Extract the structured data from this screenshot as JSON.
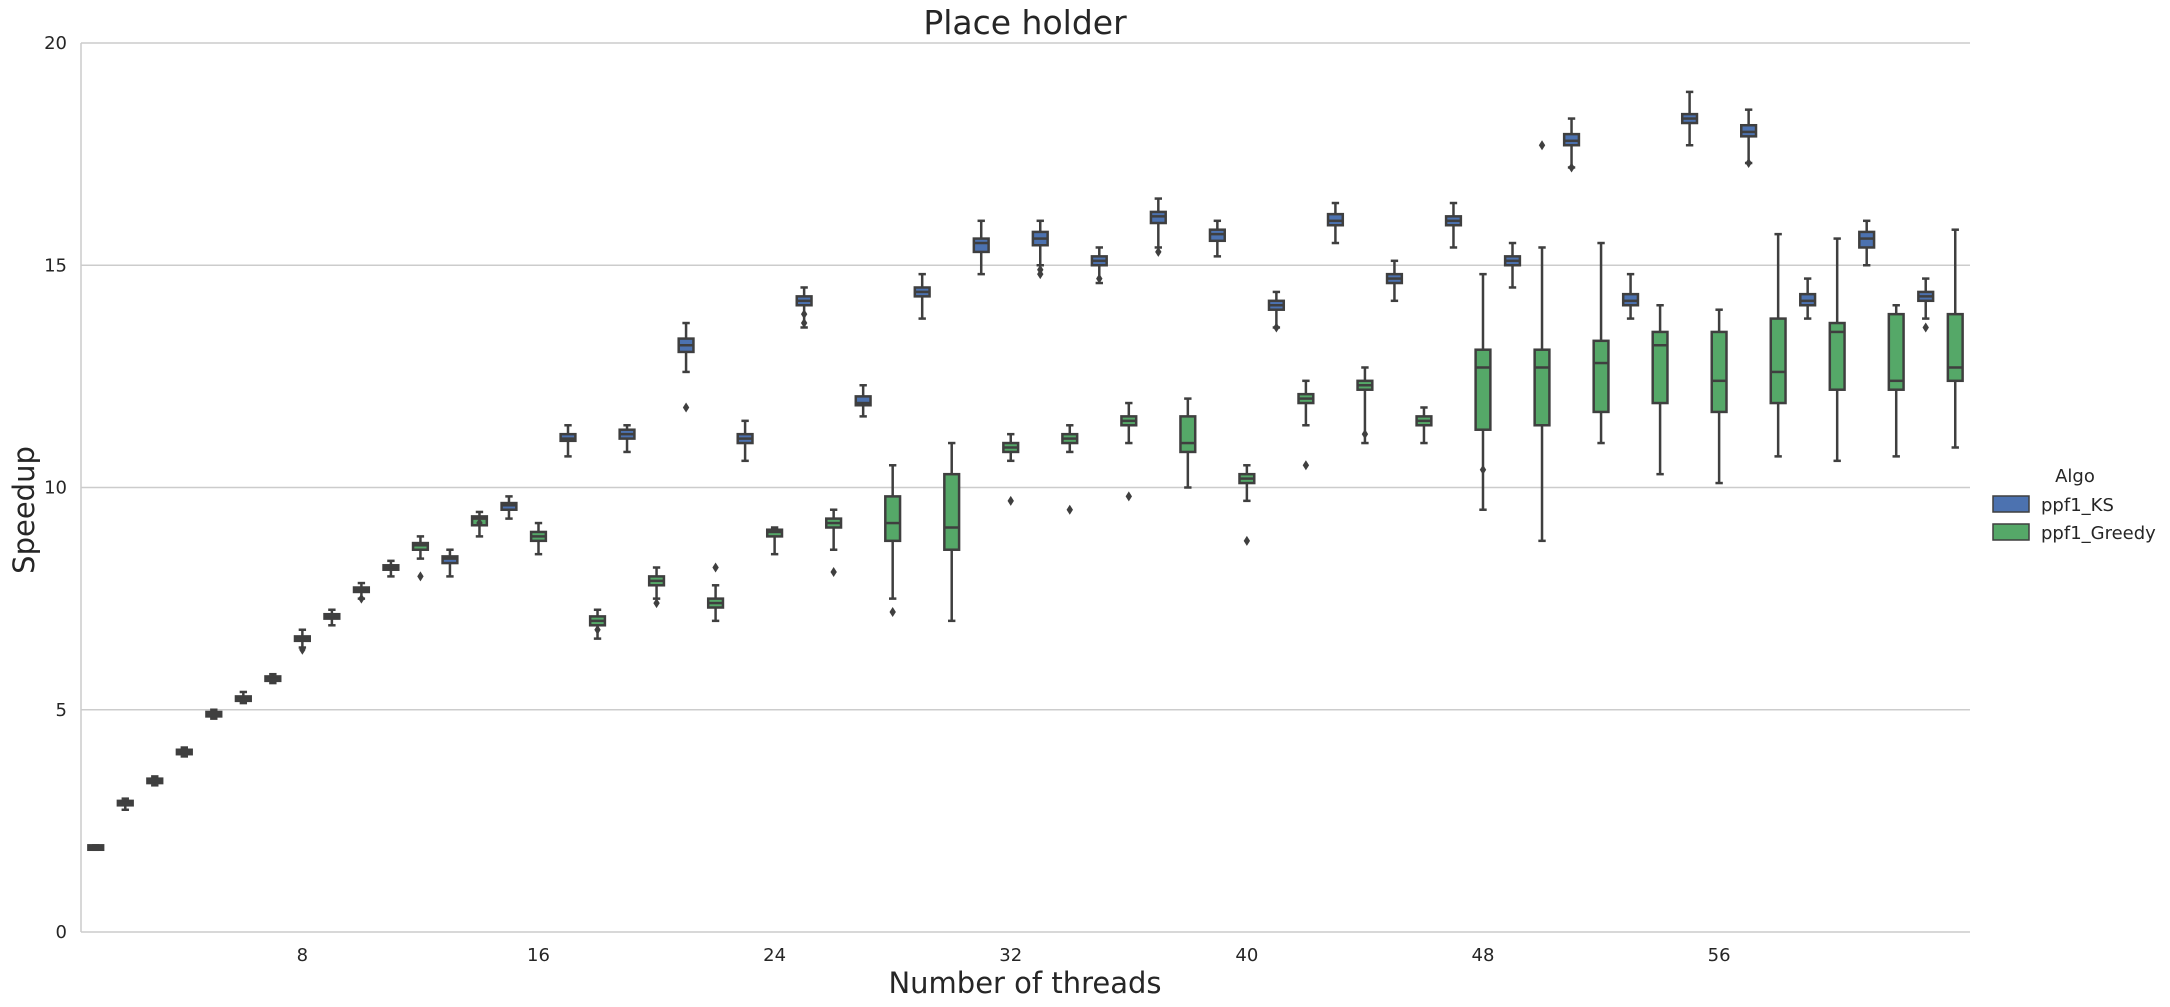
{
  "chart_data": {
    "type": "boxplot",
    "title": "Place holder",
    "xlabel": "Number of threads",
    "ylabel": "Speedup",
    "xlim": [
      0.5,
      64.5
    ],
    "ylim": [
      0,
      20
    ],
    "x_ticks": [
      8,
      16,
      24,
      32,
      40,
      48,
      56
    ],
    "y_ticks": [
      0,
      5,
      10,
      15,
      20
    ],
    "grid": "horizontal",
    "legend_position": "right",
    "legend": {
      "title": "Algo",
      "entries": [
        {
          "name": "ppf1_KS",
          "color": "#4c72b0"
        },
        {
          "name": "ppf1_Greedy",
          "color": "#55a868"
        }
      ]
    },
    "series": [
      {
        "name": "ppf1_KS",
        "color": "#4c72b0",
        "x": [
          1,
          3,
          5,
          7,
          9,
          11,
          13,
          15,
          17,
          19,
          21,
          23,
          25,
          27,
          29,
          31,
          33,
          35,
          37,
          39,
          41,
          43,
          45,
          47,
          49,
          51,
          53,
          55,
          57,
          59,
          61,
          63
        ],
        "median": [
          1.9,
          3.4,
          4.9,
          5.7,
          7.1,
          8.2,
          8.4,
          9.6,
          11.1,
          11.2,
          13.2,
          11.1,
          14.2,
          11.9,
          14.4,
          15.5,
          15.6,
          15.1,
          16.1,
          15.7,
          14.1,
          16.0,
          14.7,
          16.0,
          15.1,
          17.8,
          14.2,
          18.3,
          18.0,
          14.2,
          15.6,
          14.3
        ],
        "q1": [
          1.85,
          3.35,
          4.85,
          5.65,
          7.05,
          8.15,
          8.3,
          9.5,
          11.05,
          11.1,
          13.05,
          11.0,
          14.1,
          11.85,
          14.3,
          15.3,
          15.45,
          15.0,
          15.95,
          15.55,
          14.0,
          15.9,
          14.6,
          15.9,
          15.0,
          17.7,
          14.1,
          18.2,
          17.9,
          14.1,
          15.4,
          14.2
        ],
        "q3": [
          1.95,
          3.45,
          4.95,
          5.75,
          7.15,
          8.25,
          8.45,
          9.65,
          11.2,
          11.3,
          13.35,
          11.2,
          14.3,
          12.05,
          14.5,
          15.6,
          15.75,
          15.2,
          16.2,
          15.8,
          14.2,
          16.15,
          14.8,
          16.1,
          15.2,
          17.95,
          14.35,
          18.4,
          18.15,
          14.35,
          15.75,
          14.4
        ],
        "whislo": [
          1.85,
          3.3,
          4.8,
          5.6,
          6.9,
          8.0,
          8.0,
          9.3,
          10.7,
          10.8,
          12.6,
          10.6,
          13.6,
          11.6,
          13.8,
          14.8,
          15.0,
          14.6,
          15.4,
          15.2,
          13.6,
          15.5,
          14.2,
          15.4,
          14.5,
          17.2,
          13.8,
          17.7,
          17.3,
          13.8,
          15.0,
          13.8
        ],
        "whishi": [
          1.95,
          3.5,
          5.0,
          5.8,
          7.25,
          8.35,
          8.6,
          9.8,
          11.4,
          11.4,
          13.7,
          11.5,
          14.5,
          12.3,
          14.8,
          16.0,
          16.0,
          15.4,
          16.5,
          16.0,
          14.4,
          16.4,
          15.1,
          16.4,
          15.5,
          18.3,
          14.8,
          18.9,
          18.5,
          14.7,
          16.0,
          14.7
        ],
        "fliers": [
          [],
          [],
          [],
          [],
          [],
          [],
          [],
          [],
          [],
          [],
          [
            11.8
          ],
          [],
          [
            13.7,
            13.9
          ],
          [],
          [],
          [],
          [
            14.8,
            14.9
          ],
          [
            14.7
          ],
          [
            15.3
          ],
          [],
          [
            13.6
          ],
          [],
          [],
          [],
          [],
          [
            17.2
          ],
          [],
          [],
          [
            17.3
          ],
          [],
          [],
          [
            13.6
          ]
        ]
      },
      {
        "name": "ppf1_Greedy",
        "color": "#55a868",
        "x": [
          2,
          4,
          6,
          8,
          10,
          12,
          14,
          16,
          18,
          20,
          22,
          24,
          26,
          28,
          30,
          32,
          34,
          36,
          38,
          40,
          42,
          44,
          46,
          48,
          50,
          52,
          54,
          56,
          58,
          60,
          62,
          64
        ],
        "median": [
          2.9,
          4.05,
          5.25,
          6.6,
          7.7,
          8.7,
          9.3,
          8.9,
          7.0,
          7.9,
          7.4,
          9.0,
          9.2,
          9.2,
          9.1,
          10.9,
          11.1,
          11.5,
          11.0,
          10.2,
          12.0,
          12.3,
          11.5,
          12.7,
          12.7,
          12.8,
          13.2,
          12.4,
          12.6,
          13.5,
          12.4,
          12.7
        ],
        "q1": [
          2.85,
          4.0,
          5.2,
          6.55,
          7.65,
          8.6,
          9.15,
          8.8,
          6.9,
          7.8,
          7.3,
          8.9,
          9.1,
          8.8,
          8.6,
          10.8,
          11.0,
          11.4,
          10.8,
          10.1,
          11.9,
          12.2,
          11.4,
          11.3,
          11.4,
          11.7,
          11.9,
          11.7,
          11.9,
          12.2,
          12.2,
          12.4
        ],
        "q3": [
          2.95,
          4.1,
          5.3,
          6.65,
          7.75,
          8.75,
          9.35,
          9.0,
          7.1,
          8.0,
          7.5,
          9.05,
          9.3,
          9.8,
          10.3,
          11.0,
          11.2,
          11.6,
          11.6,
          10.3,
          12.1,
          12.4,
          11.6,
          13.1,
          13.1,
          13.3,
          13.5,
          13.5,
          13.8,
          13.7,
          13.9,
          13.9
        ],
        "whislo": [
          2.75,
          3.95,
          5.15,
          6.4,
          7.5,
          8.4,
          8.9,
          8.5,
          6.6,
          7.5,
          7.0,
          8.5,
          8.6,
          7.5,
          7.0,
          10.6,
          10.8,
          11.0,
          10.0,
          9.7,
          11.4,
          11.0,
          11.0,
          9.5,
          8.8,
          11.0,
          10.3,
          10.1,
          10.7,
          10.6,
          10.7,
          10.9
        ],
        "whishi": [
          3.0,
          4.15,
          5.4,
          6.8,
          7.85,
          8.9,
          9.45,
          9.2,
          7.25,
          8.2,
          7.8,
          9.1,
          9.5,
          10.5,
          11.0,
          11.2,
          11.4,
          11.9,
          12.0,
          10.5,
          12.4,
          12.7,
          11.8,
          14.8,
          15.4,
          15.5,
          14.1,
          14.0,
          15.7,
          15.6,
          14.1,
          15.8
        ],
        "fliers": [
          [],
          [],
          [],
          [
            6.35
          ],
          [
            7.5
          ],
          [
            8.0
          ],
          [
            9.2
          ],
          [],
          [
            6.8
          ],
          [
            7.4
          ],
          [
            8.2
          ],
          [],
          [
            8.1
          ],
          [
            7.2
          ],
          [],
          [
            9.7
          ],
          [
            9.5
          ],
          [
            9.8
          ],
          [],
          [
            8.8
          ],
          [
            10.5
          ],
          [
            11.2
          ],
          [],
          [
            10.4
          ],
          [
            17.7
          ],
          [],
          [],
          [],
          [],
          [],
          [],
          []
        ]
      }
    ]
  }
}
